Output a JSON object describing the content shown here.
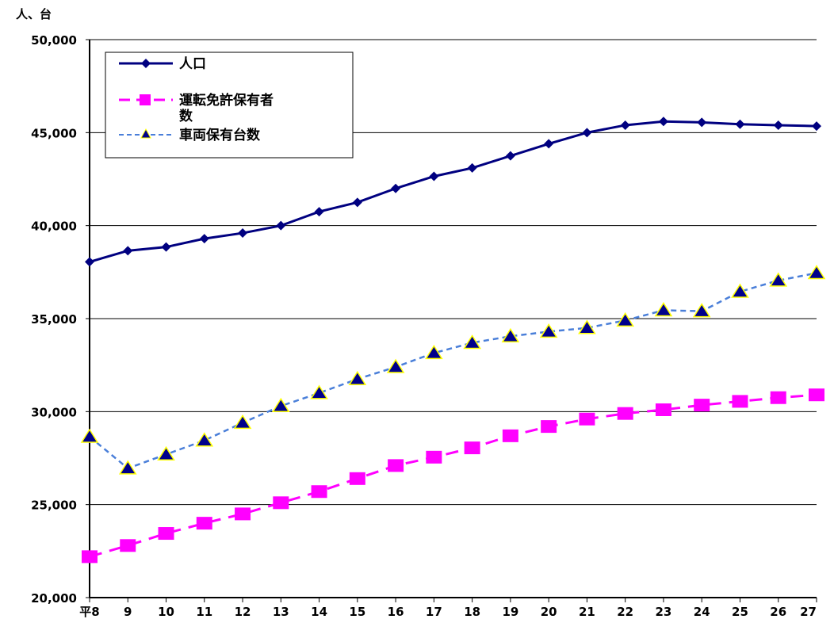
{
  "chart_data": {
    "type": "line",
    "title": "",
    "ylabel": "人、台",
    "xlabel": "",
    "ylim": [
      20000,
      50000
    ],
    "yticks": [
      20000,
      25000,
      30000,
      35000,
      40000,
      45000,
      50000
    ],
    "ytick_labels": [
      "20,000",
      "25,000",
      "30,000",
      "35,000",
      "40,000",
      "45,000",
      "50,000"
    ],
    "categories": [
      "平8",
      "9",
      "10",
      "11",
      "12",
      "13",
      "14",
      "15",
      "16",
      "17",
      "18",
      "19",
      "20",
      "21",
      "22",
      "23",
      "24",
      "25",
      "26",
      "27"
    ],
    "grid": true,
    "legend_position": "top-left",
    "series": [
      {
        "name": "人口",
        "color": "#000080",
        "marker": "diamond",
        "dash": "solid",
        "values": [
          38050,
          38650,
          38850,
          39300,
          39600,
          40000,
          40750,
          41250,
          42000,
          42650,
          43100,
          43750,
          44400,
          45000,
          45400,
          45600,
          45550,
          45450,
          45400,
          45350
        ]
      },
      {
        "name": "運転免許保有者数",
        "color": "#ff00ff",
        "marker": "square",
        "dash": "dashed",
        "values": [
          22200,
          22800,
          23450,
          24000,
          24500,
          25100,
          25700,
          26400,
          27100,
          27550,
          28050,
          28700,
          29200,
          29600,
          29900,
          30100,
          30350,
          30550,
          30750,
          30900
        ]
      },
      {
        "name": "車両保有台数",
        "color": "#4a7fd9",
        "marker": "triangle",
        "marker_fill": "#00008b",
        "marker_stroke": "#ffff00",
        "dash": "dashed",
        "values": [
          28650,
          26950,
          27700,
          28450,
          29400,
          30300,
          31000,
          31750,
          32400,
          33150,
          33700,
          34050,
          34300,
          34500,
          34900,
          35450,
          35400,
          36450,
          37050,
          37450
        ]
      }
    ]
  }
}
